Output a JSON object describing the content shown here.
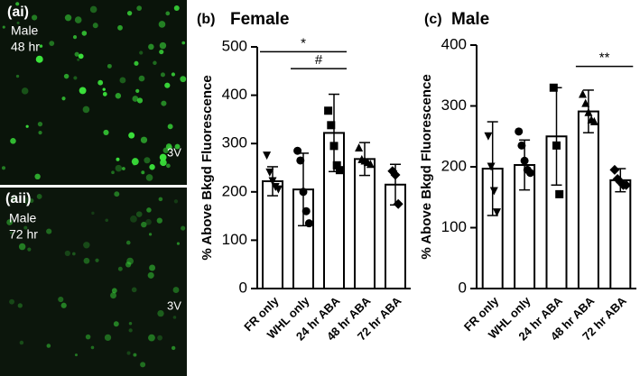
{
  "images": [
    {
      "label": "(ai)",
      "lines": [
        "Male",
        "48 hr"
      ],
      "region": "3V"
    },
    {
      "label": "(aii)",
      "lines": [
        "Male",
        "72 hr"
      ],
      "region": "3V"
    }
  ],
  "chart_data": [
    {
      "type": "bar",
      "panel_label": "(b)",
      "title": "Female",
      "ylabel": "% Above Bkgd Fluorescence",
      "categories": [
        "FR only",
        "WHL only",
        "24 hr ABA",
        "48 hr ABA",
        "72 hr ABA"
      ],
      "values": [
        222,
        205,
        322,
        268,
        215
      ],
      "errors": [
        30,
        75,
        80,
        34,
        42
      ],
      "points": [
        [
          275,
          240,
          222,
          210,
          205
        ],
        [
          285,
          265,
          200,
          160,
          135
        ],
        [
          368,
          338,
          295,
          255,
          245
        ],
        [
          292,
          268,
          265,
          262,
          258
        ],
        [
          243,
          235,
          175
        ]
      ],
      "markers": [
        "triangle-down",
        "circle",
        "square",
        "triangle-up",
        "diamond"
      ],
      "ylim": [
        0,
        500
      ],
      "yticks": [
        0,
        100,
        200,
        300,
        400,
        500
      ],
      "annotations": [
        {
          "text": "*",
          "span": [
            "FR only",
            "24 hr ABA"
          ],
          "y": 490
        },
        {
          "text": "#",
          "span": [
            "WHL only",
            "24 hr ABA"
          ],
          "y": 455
        }
      ]
    },
    {
      "type": "bar",
      "panel_label": "(c)",
      "title": "Male",
      "ylabel": "% Above Bkgd Fluorescence",
      "categories": [
        "FR only",
        "WHL only",
        "24 hr ABA",
        "48 hr ABA",
        "72 hr ABA"
      ],
      "values": [
        197,
        203,
        250,
        291,
        178
      ],
      "errors": [
        77,
        41,
        80,
        35,
        19
      ],
      "points": [
        [
          250,
          200,
          160,
          125
        ],
        [
          258,
          235,
          210,
          195,
          190
        ],
        [
          330,
          235,
          155
        ],
        [
          320,
          305,
          290,
          278,
          275
        ],
        [
          195,
          180,
          175,
          170,
          170
        ]
      ],
      "markers": [
        "triangle-down",
        "circle",
        "square",
        "triangle-up",
        "diamond"
      ],
      "ylim": [
        0,
        400
      ],
      "yticks": [
        0,
        100,
        200,
        300,
        400
      ],
      "annotations": [
        {
          "text": "**",
          "span": [
            "48 hr ABA",
            "72 hr ABA"
          ],
          "y": 365
        }
      ]
    }
  ]
}
